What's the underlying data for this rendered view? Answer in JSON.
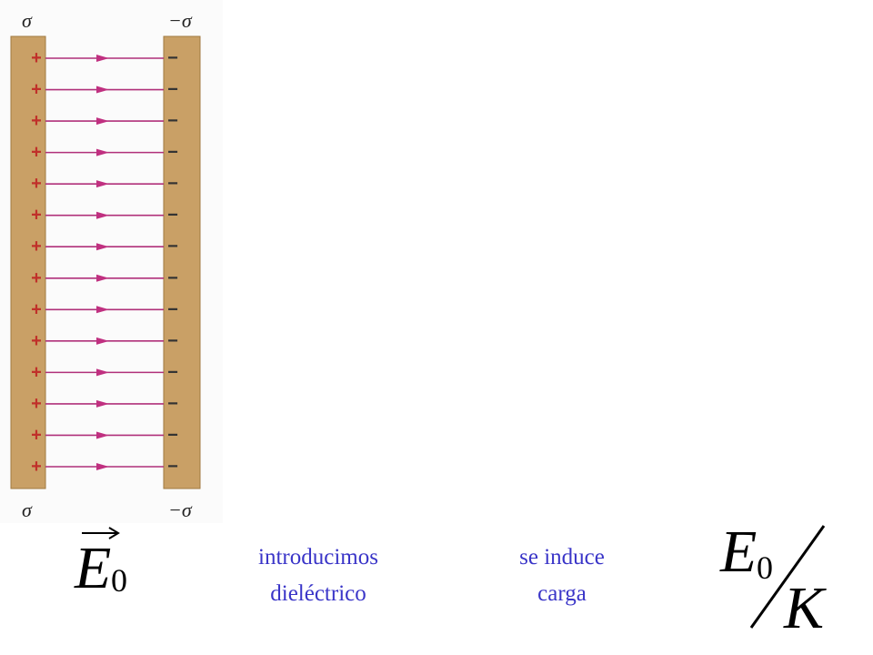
{
  "plates": {
    "left": {
      "top_label": "σ",
      "bottom_label": "σ",
      "signs": [
        "+",
        "+",
        "+",
        "+",
        "+",
        "+",
        "+",
        "+",
        "+",
        "+",
        "+",
        "+",
        "+",
        "+"
      ]
    },
    "right": {
      "top_label": "−σ",
      "bottom_label": "−σ",
      "signs": [
        "−",
        "−",
        "−",
        "−",
        "−",
        "−",
        "−",
        "−",
        "−",
        "−",
        "−",
        "−",
        "−",
        "−"
      ]
    }
  },
  "field_label": {
    "symbol": "E",
    "subscript": "0"
  },
  "step1": {
    "lines": [
      "introducimos",
      "dieléctrico"
    ]
  },
  "step2": {
    "lines": [
      "se induce",
      "carga"
    ]
  },
  "result": {
    "numerator_symbol": "E",
    "numerator_subscript": "0",
    "denominator": "K"
  }
}
